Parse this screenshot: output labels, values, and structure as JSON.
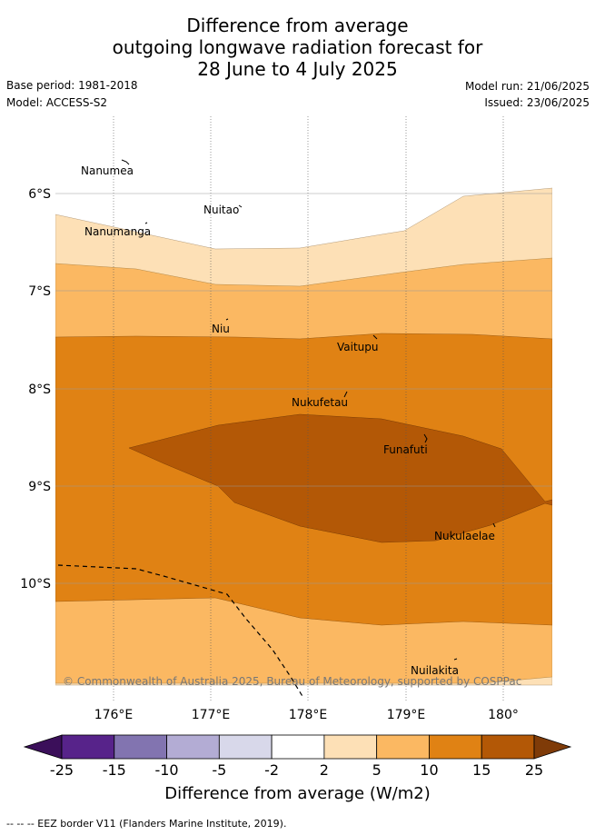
{
  "title": {
    "line1": "Difference from average",
    "line2": "outgoing longwave radiation forecast for",
    "line3": "28 June to 4 July 2025"
  },
  "meta": {
    "base_period": "Base period: 1981-2018",
    "model": "Model: ACCESS-S2",
    "model_run": "Model run: 21/06/2025",
    "issued": "Issued: 23/06/2025"
  },
  "map": {
    "lon_ticks": [
      "176°E",
      "177°E",
      "178°E",
      "179°E",
      "180°"
    ],
    "lat_ticks": [
      "6°S",
      "7°S",
      "8°S",
      "9°S",
      "10°S"
    ],
    "places": [
      {
        "name": "Nanumea"
      },
      {
        "name": "Nuitao"
      },
      {
        "name": "Nanumanga"
      },
      {
        "name": "Niu"
      },
      {
        "name": "Vaitupu"
      },
      {
        "name": "Nukufetau"
      },
      {
        "name": "Funafuti"
      },
      {
        "name": "Nukulaelae"
      },
      {
        "name": "Nuilakita"
      }
    ],
    "copyright": "© Commonwealth of Australia 2025, Bureau of Meteorology, supported by COSPPac"
  },
  "colorbar": {
    "title": "Difference from average (W/m2)",
    "labels": [
      "-25",
      "-15",
      "-10",
      "-5",
      "-2",
      "2",
      "5",
      "10",
      "15",
      "25"
    ],
    "colors": [
      "#3b0f5a",
      "#57238a",
      "#8274b0",
      "#b3acd4",
      "#d8d8ea",
      "#ffffff",
      "#fde0b6",
      "#fbb862",
      "#e08214",
      "#b35806",
      "#7f3b08"
    ]
  },
  "footer": {
    "eez_note": "--  --  -- EEZ border V11 (Flanders Marine Institute, 2019)."
  }
}
